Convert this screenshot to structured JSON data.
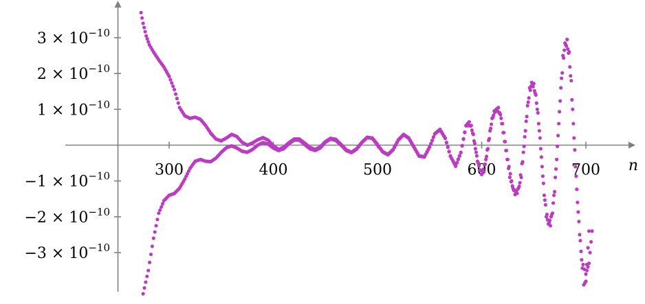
{
  "chart_data": {
    "type": "scatter",
    "title": "",
    "xlabel": "n",
    "ylabel": "",
    "xlim": [
      270,
      708
    ],
    "ylim": [
      -4.2e-10,
      3.9e-10
    ],
    "x_ticks": [
      300,
      400,
      500,
      600,
      700
    ],
    "x_tick_labels": [
      "300",
      "400",
      "500",
      "600",
      "700"
    ],
    "y_ticks": [
      3e-10,
      2e-10,
      1e-10,
      -1e-10,
      -2e-10,
      -3e-10
    ],
    "y_tick_labels": [
      {
        "prefix": "3 × 10",
        "exp": "−10"
      },
      {
        "prefix": "2 × 10",
        "exp": "−10"
      },
      {
        "prefix": "1 × 10",
        "exp": "−10"
      },
      {
        "prefix": "−1 × 10",
        "exp": "−10"
      },
      {
        "prefix": "−2 × 10",
        "exp": "−10"
      },
      {
        "prefix": "−3 × 10",
        "exp": "−10"
      }
    ],
    "grid": false,
    "marker_color": "#b93cc1",
    "series": [
      {
        "values": [
          [
            273,
            3.7e-10
          ],
          [
            275,
            3.4e-10
          ],
          [
            278,
            3.05e-10
          ],
          [
            281,
            2.8e-10
          ],
          [
            285,
            2.6e-10
          ],
          [
            290,
            2.38e-10
          ],
          [
            295,
            2.18e-10
          ],
          [
            300,
            1.92e-10
          ],
          [
            305,
            1.55e-10
          ],
          [
            310,
            1.05e-10
          ],
          [
            315,
            8.2e-11
          ],
          [
            320,
            7.5e-11
          ],
          [
            325,
            7.8e-11
          ],
          [
            330,
            7.2e-11
          ],
          [
            335,
            5.5e-11
          ],
          [
            340,
            3.3e-11
          ],
          [
            345,
            1.7e-11
          ],
          [
            350,
            1.2e-11
          ],
          [
            355,
            2e-11
          ],
          [
            360,
            3e-11
          ],
          [
            365,
            2.4e-11
          ],
          [
            370,
            8e-12
          ],
          [
            375,
            0.0
          ],
          [
            380,
            6e-12
          ],
          [
            385,
            1.5e-11
          ],
          [
            390,
            2.1e-11
          ],
          [
            395,
            1.4e-11
          ],
          [
            400,
            -2e-12
          ],
          [
            405,
            -1.2e-11
          ],
          [
            410,
            -6e-12
          ],
          [
            415,
            7e-12
          ],
          [
            420,
            1.7e-11
          ],
          [
            425,
            1.7e-11
          ],
          [
            430,
            6e-12
          ],
          [
            435,
            -6e-12
          ],
          [
            440,
            -1.2e-11
          ],
          [
            445,
            -5e-12
          ],
          [
            450,
            1e-11
          ],
          [
            455,
            1.9e-11
          ],
          [
            460,
            1.6e-11
          ],
          [
            465,
            2e-12
          ],
          [
            470,
            -1.3e-11
          ],
          [
            475,
            -2e-11
          ],
          [
            480,
            -1e-11
          ],
          [
            485,
            8e-12
          ],
          [
            490,
            2.2e-11
          ],
          [
            495,
            2e-11
          ],
          [
            500,
            2e-12
          ],
          [
            505,
            -1.8e-11
          ],
          [
            510,
            -2.6e-11
          ],
          [
            515,
            -1.2e-11
          ],
          [
            520,
            1.5e-11
          ],
          [
            525,
            3e-11
          ],
          [
            530,
            2e-11
          ],
          [
            535,
            -5e-12
          ],
          [
            540,
            -3e-11
          ],
          [
            545,
            -3.2e-11
          ],
          [
            550,
            -5e-12
          ],
          [
            555,
            3.2e-11
          ],
          [
            560,
            4.4e-11
          ],
          [
            565,
            2e-11
          ],
          [
            570,
            -3e-11
          ],
          [
            575,
            -5.8e-11
          ],
          [
            580,
            -2e-11
          ],
          [
            585,
            5.5e-11
          ],
          [
            588,
            6.5e-11
          ],
          [
            592,
            3e-11
          ],
          [
            596,
            -4.5e-11
          ],
          [
            600,
            -8.2e-11
          ],
          [
            604,
            -4e-11
          ],
          [
            608,
            4e-11
          ],
          [
            612,
            9.5e-11
          ],
          [
            616,
            1.05e-10
          ],
          [
            620,
            6e-11
          ],
          [
            625,
            -4e-11
          ],
          [
            630,
            -1.2e-10
          ],
          [
            634,
            -1.35e-10
          ],
          [
            638,
            -9e-11
          ],
          [
            642,
            4e-11
          ],
          [
            646,
            1.6e-10
          ],
          [
            650,
            1.72e-10
          ],
          [
            654,
            9e-11
          ],
          [
            658,
            -6e-11
          ],
          [
            662,
            -2e-10
          ],
          [
            666,
            -2.25e-10
          ],
          [
            670,
            -1.3e-10
          ],
          [
            674,
            6e-11
          ],
          [
            678,
            2.5e-10
          ],
          [
            682,
            2.95e-10
          ],
          [
            686,
            1.8e-10
          ],
          [
            690,
            -6e-11
          ],
          [
            694,
            -2.5e-10
          ],
          [
            698,
            -3.9e-10
          ],
          [
            700,
            -3.8e-10
          ],
          [
            703,
            -2.4e-10
          ]
        ]
      },
      {
        "values": [
          [
            275,
            -4.15e-10
          ],
          [
            280,
            -3.5e-10
          ],
          [
            285,
            -2.6e-10
          ],
          [
            290,
            -1.9e-10
          ],
          [
            295,
            -1.55e-10
          ],
          [
            300,
            -1.4e-10
          ],
          [
            305,
            -1.35e-10
          ],
          [
            310,
            -1.2e-10
          ],
          [
            315,
            -9.5e-11
          ],
          [
            320,
            -6.5e-11
          ],
          [
            325,
            -4.5e-11
          ],
          [
            330,
            -4e-11
          ],
          [
            335,
            -4.5e-11
          ],
          [
            340,
            -4.6e-11
          ],
          [
            345,
            -3.6e-11
          ],
          [
            350,
            -2e-11
          ],
          [
            355,
            -7e-12
          ],
          [
            360,
            -2e-12
          ],
          [
            365,
            -8e-12
          ],
          [
            370,
            -1.7e-11
          ],
          [
            375,
            -2e-11
          ],
          [
            380,
            -1.2e-11
          ],
          [
            385,
            0.0
          ],
          [
            390,
            7e-12
          ],
          [
            395,
            3e-12
          ],
          [
            400,
            -8e-12
          ],
          [
            405,
            -1.5e-11
          ],
          [
            410,
            -1e-11
          ],
          [
            415,
            4e-12
          ],
          [
            420,
            1.4e-11
          ],
          [
            425,
            1.4e-11
          ],
          [
            430,
            2e-12
          ],
          [
            435,
            -1e-11
          ],
          [
            440,
            -1.5e-11
          ],
          [
            445,
            -8e-12
          ],
          [
            450,
            8e-12
          ],
          [
            455,
            1.7e-11
          ],
          [
            460,
            1.3e-11
          ],
          [
            465,
            0.0
          ],
          [
            470,
            -1.5e-11
          ],
          [
            475,
            -2.1e-11
          ],
          [
            480,
            -1.1e-11
          ],
          [
            485,
            7e-12
          ],
          [
            490,
            2.1e-11
          ],
          [
            495,
            1.9e-11
          ],
          [
            500,
            0.0
          ],
          [
            505,
            -1.9e-11
          ],
          [
            510,
            -2.7e-11
          ],
          [
            515,
            -1.3e-11
          ],
          [
            520,
            1.4e-11
          ],
          [
            525,
            2.9e-11
          ],
          [
            530,
            1.9e-11
          ],
          [
            535,
            -6e-12
          ],
          [
            540,
            -3.1e-11
          ],
          [
            545,
            -3.3e-11
          ],
          [
            550,
            -6e-12
          ],
          [
            555,
            3.1e-11
          ],
          [
            560,
            4.3e-11
          ],
          [
            565,
            1.9e-11
          ],
          [
            570,
            -3.1e-11
          ],
          [
            575,
            -5.9e-11
          ],
          [
            580,
            -2.1e-11
          ],
          [
            585,
            5.4e-11
          ],
          [
            590,
            5.5e-11
          ],
          [
            594,
            -1e-11
          ],
          [
            598,
            -7e-11
          ],
          [
            602,
            -7.5e-11
          ],
          [
            606,
            -1e-11
          ],
          [
            610,
            7.5e-11
          ],
          [
            614,
            1e-10
          ],
          [
            618,
            8.5e-11
          ],
          [
            622,
            1e-11
          ],
          [
            627,
            -9e-11
          ],
          [
            632,
            -1.38e-10
          ],
          [
            636,
            -1.15e-10
          ],
          [
            640,
            -2e-11
          ],
          [
            644,
            1.1e-10
          ],
          [
            648,
            1.75e-10
          ],
          [
            652,
            1.4e-10
          ],
          [
            656,
            2e-11
          ],
          [
            660,
            -1.4e-10
          ],
          [
            664,
            -2.2e-10
          ],
          [
            668,
            -1.9e-10
          ],
          [
            672,
            -4e-11
          ],
          [
            676,
            1.6e-10
          ],
          [
            680,
            2.85e-10
          ],
          [
            684,
            2.6e-10
          ],
          [
            688,
            6e-11
          ],
          [
            692,
            -1.6e-10
          ],
          [
            696,
            -3.2e-10
          ],
          [
            700,
            -3.6e-10
          ],
          [
            703,
            -3.3e-10
          ],
          [
            706,
            -2.4e-10
          ]
        ]
      }
    ]
  }
}
